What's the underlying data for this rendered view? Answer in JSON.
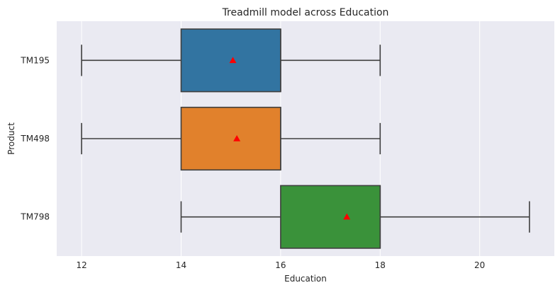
{
  "chart_data": {
    "type": "boxplot",
    "orientation": "horizontal",
    "title": "Treadmill model across Education",
    "xlabel": "Education",
    "ylabel": "Product",
    "xlim": [
      11.5,
      21.5
    ],
    "xticks": [
      12,
      14,
      16,
      18,
      20
    ],
    "grid": true,
    "categories": [
      "TM195",
      "TM498",
      "TM798"
    ],
    "series": [
      {
        "category": "TM195",
        "whisker_low": 12,
        "q1": 14,
        "median": 16,
        "q3": 16,
        "whisker_high": 18,
        "mean": 15.04,
        "color": "#3274a1"
      },
      {
        "category": "TM498",
        "whisker_low": 12,
        "q1": 14,
        "median": 16,
        "q3": 16,
        "whisker_high": 18,
        "mean": 15.12,
        "color": "#e1812c"
      },
      {
        "category": "TM798",
        "whisker_low": 14,
        "q1": 16,
        "median": 18,
        "q3": 18,
        "whisker_high": 21,
        "mean": 17.33,
        "color": "#3a923a"
      }
    ],
    "mean_marker_color": "#ff0000",
    "background_color": "#eaeaf2"
  }
}
